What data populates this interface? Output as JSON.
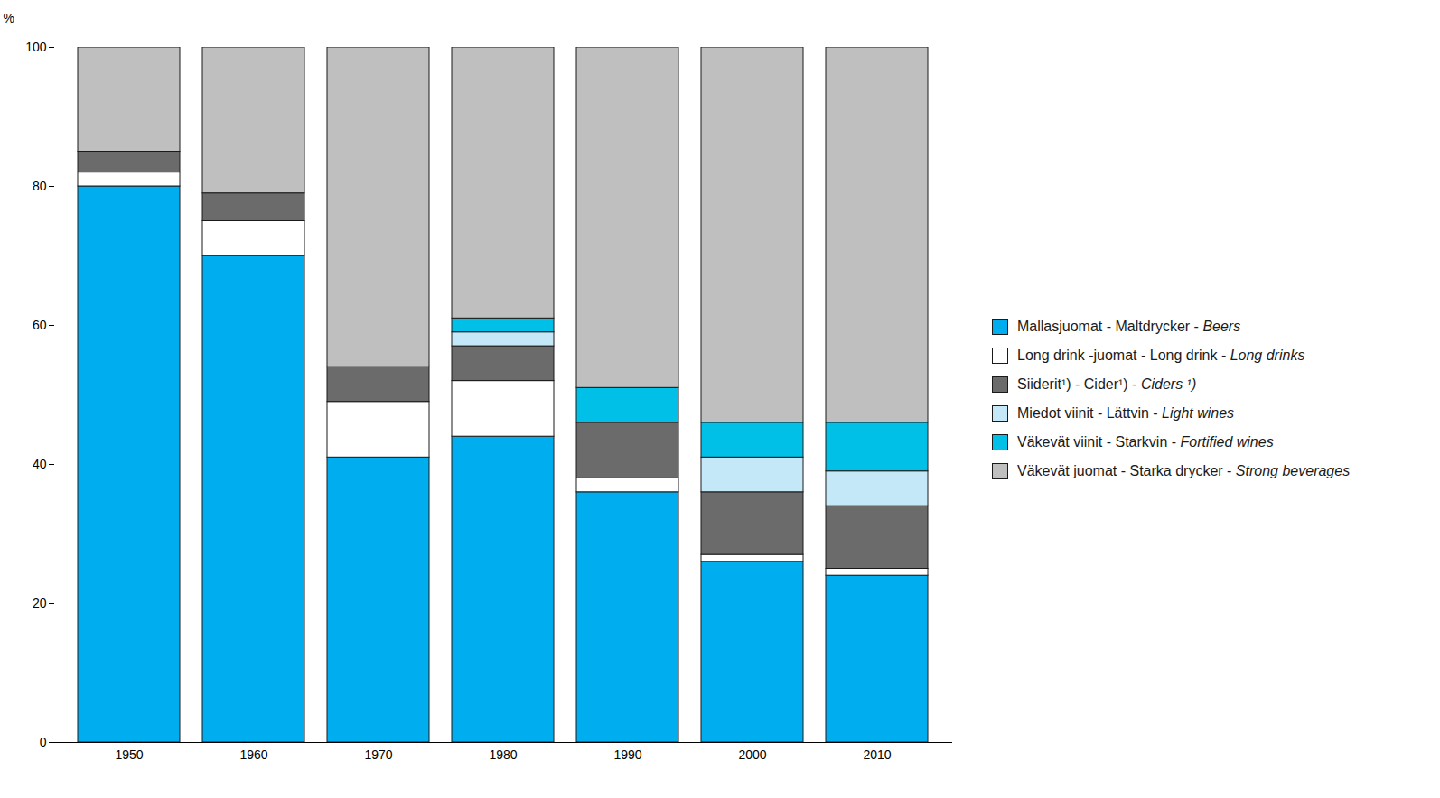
{
  "chart_data": {
    "type": "bar",
    "stacked": true,
    "categories": [
      "1950",
      "1960",
      "1970",
      "1980",
      "1990",
      "2000",
      "2010"
    ],
    "series": [
      {
        "name": "Mallasjuomat - Maltdrycker - Beers",
        "color": "#00AEEF",
        "values": [
          80,
          70,
          41,
          44,
          36,
          26,
          24
        ]
      },
      {
        "name": "Long drink -juomat - Long drink - Long drinks",
        "color": "#FFFFFF",
        "values": [
          2,
          5,
          8,
          8,
          2,
          1,
          1
        ]
      },
      {
        "name": "Siiderit¹) - Cider¹) - Ciders ¹)",
        "color": "#6B6B6B",
        "values": [
          3,
          4,
          5,
          5,
          8,
          9,
          9
        ]
      },
      {
        "name": "Miedot viinit - Lättvin - Light wines",
        "color": "#C5E8F8",
        "values": [
          0,
          0,
          0,
          2,
          0,
          5,
          5
        ]
      },
      {
        "name": "Väkevät viinit - Starkvin - Fortified wines",
        "color": "#00C0E8",
        "values": [
          0,
          0,
          0,
          2,
          5,
          5,
          7
        ]
      },
      {
        "name": "Väkevät juomat - Starka drycker - Strong beverages",
        "color": "#BFBFBF",
        "values": [
          15,
          21,
          46,
          39,
          49,
          54,
          54
        ]
      }
    ],
    "ylabel": "%",
    "ylim": [
      0,
      100
    ],
    "yticks": [
      0,
      20,
      40,
      60,
      80,
      100
    ],
    "grid": false,
    "legend": "right"
  }
}
